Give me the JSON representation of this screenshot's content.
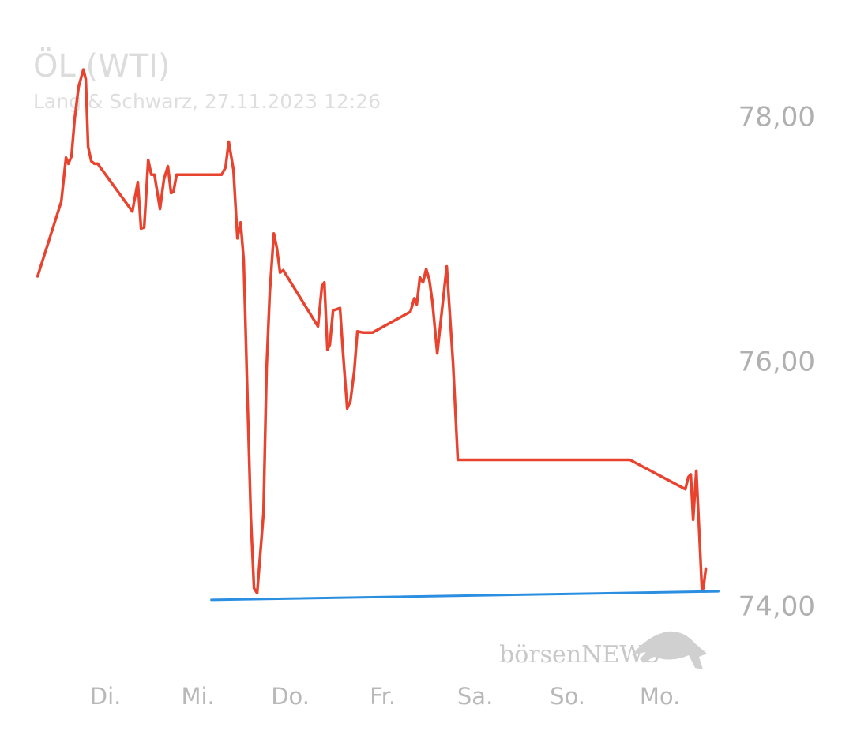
{
  "chart_data": {
    "type": "line",
    "title": "ÖL (WTI)",
    "subtitle": "Lang & Schwarz, 27.11.2023 12:26",
    "watermark": "börsenNEWS",
    "xlim": [
      -0.8,
      6.7
    ],
    "xticks": [
      {
        "value": 0,
        "label": "Di."
      },
      {
        "value": 1,
        "label": "Mi."
      },
      {
        "value": 2,
        "label": "Do."
      },
      {
        "value": 3,
        "label": "Fr."
      },
      {
        "value": 4,
        "label": "Sa."
      },
      {
        "value": 5,
        "label": "So."
      },
      {
        "value": 6,
        "label": "Mo."
      }
    ],
    "ylim": [
      73.3,
      78.7
    ],
    "yticks": [
      {
        "value": 74,
        "label": "74,00"
      },
      {
        "value": 76,
        "label": "76,00"
      },
      {
        "value": 78,
        "label": "78,00"
      }
    ],
    "series": [
      {
        "color": "#e8432f",
        "x": [
          -0.735,
          -0.479,
          -0.427,
          -0.402,
          -0.368,
          -0.333,
          -0.291,
          -0.239,
          -0.214,
          -0.188,
          -0.154,
          -0.12,
          -0.085,
          0.291,
          0.35,
          0.385,
          0.419,
          0.462,
          0.496,
          0.53,
          0.59,
          0.632,
          0.675,
          0.709,
          0.735,
          0.769,
          1.256,
          1.299,
          1.333,
          1.385,
          1.427,
          1.462,
          1.496,
          1.538,
          1.573,
          1.607,
          1.641,
          1.709,
          1.744,
          1.778,
          1.821,
          1.855,
          1.889,
          1.923,
          2.299,
          2.342,
          2.368,
          2.402,
          2.427,
          2.462,
          2.538,
          2.573,
          2.615,
          2.65,
          2.692,
          2.726,
          2.786,
          2.889,
          3.299,
          3.342,
          3.368,
          3.402,
          3.436,
          3.47,
          3.504,
          3.538,
          3.59,
          3.692,
          3.761,
          3.812,
          5.675,
          6.274,
          6.308,
          6.333,
          6.359,
          6.393,
          6.427,
          6.453,
          6.47,
          6.496
        ],
        "values": [
          76.71,
          77.32,
          77.68,
          77.63,
          77.69,
          78.0,
          78.26,
          78.4,
          78.32,
          77.77,
          77.65,
          77.63,
          77.63,
          77.24,
          77.48,
          77.1,
          77.11,
          77.66,
          77.54,
          77.54,
          77.26,
          77.5,
          77.61,
          77.39,
          77.4,
          77.54,
          77.54,
          77.6,
          77.81,
          77.58,
          77.02,
          77.15,
          76.84,
          75.68,
          74.74,
          74.16,
          74.12,
          74.77,
          75.97,
          76.58,
          77.06,
          76.94,
          76.74,
          76.76,
          76.3,
          76.63,
          76.66,
          76.11,
          76.15,
          76.43,
          76.45,
          76.06,
          75.63,
          75.69,
          75.94,
          76.26,
          76.25,
          76.25,
          76.42,
          76.53,
          76.48,
          76.7,
          76.66,
          76.77,
          76.68,
          76.5,
          76.08,
          76.79,
          76.0,
          75.21,
          75.21,
          74.97,
          75.07,
          75.09,
          74.72,
          75.12,
          74.58,
          74.16,
          74.16,
          74.32
        ]
      }
    ],
    "trend_line": {
      "color": "#2a8fe0",
      "x": [
        1.145,
        6.632
      ],
      "values": [
        74.065,
        74.135
      ]
    }
  }
}
